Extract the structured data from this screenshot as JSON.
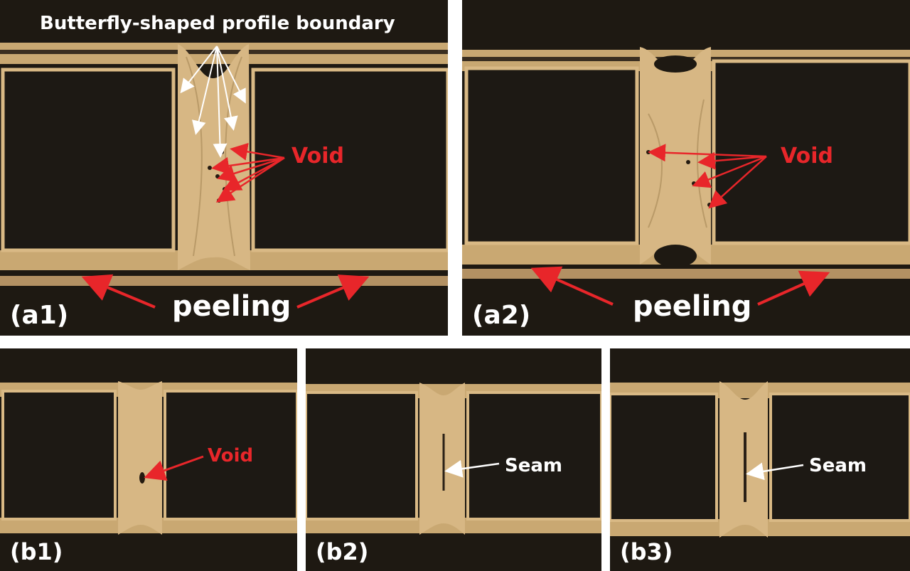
{
  "colors": {
    "background": "#1f1a14",
    "copper": "#d9b985",
    "copper_dark": "#b99a68",
    "annotation_red": "#e8262a",
    "annotation_white": "#ffffff"
  },
  "panels": {
    "a1": {
      "label": "(a1)",
      "annotation_top": "Butterfly-shaped profile boundary",
      "void_label": "Void",
      "peeling_label": "peeling"
    },
    "a2": {
      "label": "(a2)",
      "void_label": "Void",
      "peeling_label": "peeling"
    },
    "b1": {
      "label": "(b1)",
      "void_label": "Void"
    },
    "b2": {
      "label": "(b2)",
      "seam_label": "Seam"
    },
    "b3": {
      "label": "(b3)",
      "seam_label": "Seam"
    }
  }
}
